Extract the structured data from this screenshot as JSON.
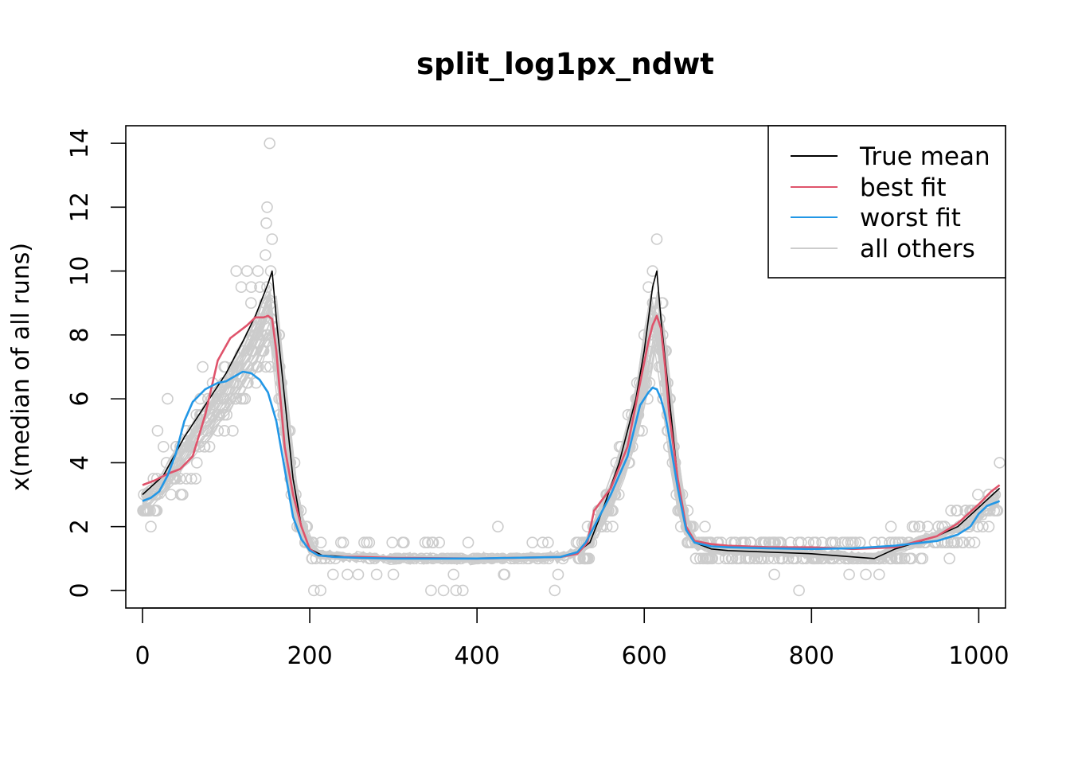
{
  "chart_data": {
    "type": "line",
    "title": "split_log1px_ndwt",
    "xlabel": "",
    "ylabel": "x(median of all runs)",
    "xlim": [
      -20,
      1032
    ],
    "ylim": [
      -0.55,
      14.55
    ],
    "xticks": [
      0,
      200,
      400,
      600,
      800,
      1000
    ],
    "yticks": [
      0,
      2,
      4,
      6,
      8,
      10,
      12,
      14
    ],
    "xtick_labels": [
      "0",
      "200",
      "400",
      "600",
      "800",
      "1000"
    ],
    "ytick_labels": [
      "0",
      "2",
      "4",
      "6",
      "8",
      "10",
      "12",
      "14"
    ],
    "grid": false,
    "legend_position": "top-right",
    "legend": [
      {
        "label": "True mean",
        "color": "#000000"
      },
      {
        "label": "best fit",
        "color": "#DF536B"
      },
      {
        "label": "worst fit",
        "color": "#2297E6"
      },
      {
        "label": "all others",
        "color": "#CCCCCC"
      }
    ],
    "series": [
      {
        "name": "True mean",
        "color": "#000000",
        "x": [
          0,
          25,
          50,
          75,
          100,
          120,
          135,
          150,
          155,
          160,
          170,
          180,
          190,
          200,
          215,
          250,
          300,
          400,
          500,
          520,
          535,
          550,
          570,
          590,
          600,
          605,
          610,
          615,
          620,
          630,
          640,
          650,
          660,
          680,
          700,
          800,
          875,
          900,
          950,
          975,
          1000,
          1025
        ],
        "y": [
          3.0,
          3.6,
          4.8,
          5.8,
          6.8,
          7.8,
          8.6,
          9.6,
          10.0,
          8.5,
          6.0,
          3.5,
          2.0,
          1.3,
          1.1,
          1.05,
          1.0,
          1.0,
          1.05,
          1.2,
          1.5,
          2.5,
          4.0,
          6.0,
          7.5,
          8.5,
          9.5,
          10.0,
          8.5,
          6.0,
          3.5,
          2.0,
          1.5,
          1.3,
          1.25,
          1.15,
          1.0,
          1.3,
          1.7,
          2.0,
          2.6,
          3.2
        ]
      },
      {
        "name": "best fit",
        "color": "#DF536B",
        "x": [
          0,
          15,
          30,
          45,
          60,
          75,
          90,
          105,
          115,
          125,
          135,
          145,
          150,
          155,
          160,
          165,
          170,
          180,
          190,
          200,
          210,
          230,
          260,
          300,
          400,
          500,
          520,
          532,
          540,
          560,
          580,
          595,
          605,
          610,
          615,
          620,
          625,
          630,
          640,
          650,
          660,
          680,
          700,
          750,
          800,
          850,
          900,
          950,
          975,
          1000,
          1015,
          1025
        ],
        "y": [
          3.3,
          3.45,
          3.65,
          3.8,
          4.2,
          5.5,
          7.2,
          7.9,
          8.1,
          8.3,
          8.55,
          8.55,
          8.6,
          8.5,
          7.5,
          6.0,
          4.5,
          3.0,
          2.0,
          1.3,
          1.1,
          1.05,
          1.05,
          1.02,
          1.0,
          1.05,
          1.15,
          1.5,
          2.5,
          3.2,
          4.5,
          6.5,
          7.8,
          8.3,
          8.6,
          8.2,
          7.0,
          5.5,
          3.5,
          2.0,
          1.55,
          1.45,
          1.4,
          1.35,
          1.35,
          1.3,
          1.35,
          1.7,
          2.1,
          2.7,
          3.1,
          3.3
        ]
      },
      {
        "name": "worst fit",
        "color": "#2297E6",
        "x": [
          0,
          10,
          20,
          30,
          40,
          50,
          60,
          75,
          90,
          100,
          110,
          120,
          130,
          140,
          150,
          160,
          170,
          180,
          190,
          200,
          210,
          230,
          260,
          300,
          400,
          500,
          520,
          530,
          540,
          560,
          580,
          595,
          605,
          610,
          615,
          620,
          625,
          630,
          640,
          650,
          660,
          680,
          700,
          750,
          800,
          850,
          900,
          950,
          975,
          990,
          1000,
          1010,
          1025
        ],
        "y": [
          2.8,
          2.9,
          3.1,
          3.6,
          4.3,
          5.3,
          5.9,
          6.3,
          6.5,
          6.55,
          6.7,
          6.85,
          6.8,
          6.6,
          6.2,
          5.3,
          3.8,
          2.3,
          1.6,
          1.25,
          1.1,
          1.05,
          1.02,
          1.0,
          1.0,
          1.05,
          1.2,
          1.5,
          2.0,
          3.0,
          4.2,
          5.8,
          6.2,
          6.35,
          6.3,
          6.0,
          5.5,
          4.8,
          3.2,
          1.9,
          1.5,
          1.38,
          1.35,
          1.32,
          1.3,
          1.32,
          1.4,
          1.55,
          1.75,
          2.0,
          2.4,
          2.65,
          2.8
        ]
      }
    ],
    "background_curves": {
      "label": "all others",
      "color": "#CCCCCC",
      "count": 30
    },
    "observed_points": {
      "color": "#CCCCCC",
      "marker": "open-circle",
      "outliers": [
        [
          152,
          14.0
        ],
        [
          149,
          12.0
        ],
        [
          148,
          11.5
        ],
        [
          155,
          11.0
        ],
        [
          147,
          10.5
        ],
        [
          112,
          10.0
        ],
        [
          125,
          10.0
        ],
        [
          138,
          10.0
        ],
        [
          118,
          9.5
        ],
        [
          130,
          9.5
        ],
        [
          615,
          11.0
        ],
        [
          610,
          10.0
        ],
        [
          605,
          9.5
        ],
        [
          622,
          9.0
        ],
        [
          600,
          8.0
        ],
        [
          425,
          2.0
        ],
        [
          338,
          1.5
        ],
        [
          485,
          1.5
        ],
        [
          240,
          1.5
        ],
        [
          265,
          1.5
        ],
        [
          345,
          0.0
        ],
        [
          360,
          0.0
        ],
        [
          375,
          0.0
        ],
        [
          383,
          0.0
        ],
        [
          493,
          0.0
        ],
        [
          785,
          0.0
        ],
        [
          205,
          0.0
        ],
        [
          213,
          0.0
        ],
        [
          245,
          0.5
        ],
        [
          258,
          0.5
        ],
        [
          280,
          0.5
        ],
        [
          300,
          0.5
        ],
        [
          372,
          0.5
        ],
        [
          433,
          0.5
        ],
        [
          497,
          0.5
        ],
        [
          845,
          0.5
        ],
        [
          865,
          0.5
        ],
        [
          30,
          6.0
        ],
        [
          10,
          2.0
        ],
        [
          5,
          2.5
        ],
        [
          18,
          5.0
        ],
        [
          25,
          4.5
        ],
        [
          48,
          3.0
        ],
        [
          65,
          4.0
        ],
        [
          72,
          7.0
        ],
        [
          1025,
          4.0
        ],
        [
          980,
          1.5
        ],
        [
          995,
          1.5
        ],
        [
          965,
          1.0
        ],
        [
          895,
          2.0
        ]
      ]
    }
  }
}
